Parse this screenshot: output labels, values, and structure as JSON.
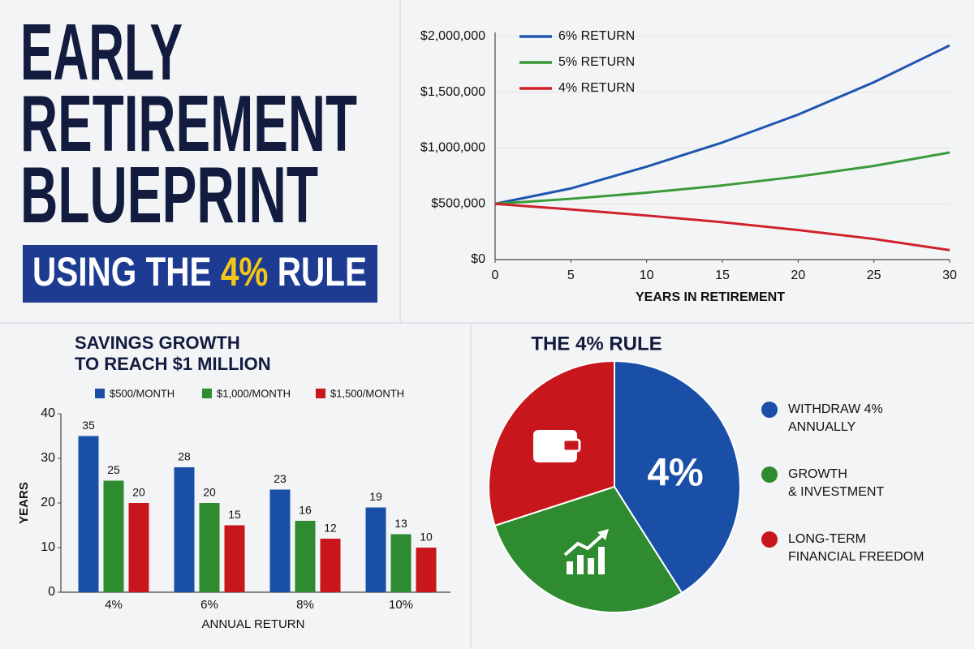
{
  "header": {
    "title_lines": [
      "EARLY",
      "RETIREMENT",
      "BLUEPRINT"
    ],
    "banner": [
      "USING THE",
      "4%",
      "RULE"
    ]
  },
  "chart_data": [
    {
      "type": "line",
      "xlabel": "YEARS IN RETIREMENT",
      "x": [
        0,
        5,
        10,
        15,
        20,
        25,
        30
      ],
      "series": [
        {
          "name": "6% RETURN",
          "color": "#1f55b0",
          "values": [
            500000,
            638000,
            833000,
            1050000,
            1300000,
            1590000,
            1920000
          ]
        },
        {
          "name": "5% RETURN",
          "color": "#3a9a3a",
          "values": [
            500000,
            545000,
            600000,
            665000,
            745000,
            840000,
            960000
          ]
        },
        {
          "name": "4% RETURN",
          "color": "#d0202a",
          "values": [
            500000,
            450000,
            395000,
            335000,
            265000,
            185000,
            85000
          ]
        }
      ],
      "xlim": [
        0,
        30
      ],
      "xticks": [
        0,
        5,
        10,
        15,
        20,
        25,
        30
      ],
      "ylim": [
        0,
        2000000
      ],
      "yticks": [
        {
          "value": 0,
          "label": "$0"
        },
        {
          "value": 500000,
          "label": "$500,000"
        },
        {
          "value": 1000000,
          "label": "$1,000,000"
        },
        {
          "value": 1500000,
          "label": "$1,500,000"
        },
        {
          "value": 2000000,
          "label": "$2,000,000"
        }
      ],
      "grid": true
    },
    {
      "type": "bar",
      "title": "SAVINGS GROWTH\nTO REACH $1 MILLION",
      "xlabel": "ANNUAL RETURN",
      "ylabel": "YEARS",
      "categories": [
        "4%",
        "6%",
        "8%",
        "10%"
      ],
      "series": [
        {
          "name": "$500/MONTH",
          "color": "#1a4fa8",
          "values": [
            35,
            28,
            23,
            19
          ]
        },
        {
          "name": "$1,000/MONTH",
          "color": "#2e8b30",
          "values": [
            25,
            20,
            16,
            13
          ]
        },
        {
          "name": "$1,500/MONTH",
          "color": "#c8161d",
          "values": [
            20,
            15,
            12,
            10
          ]
        }
      ],
      "ylim": [
        0,
        40
      ],
      "yticks": [
        0,
        10,
        20,
        30,
        40
      ],
      "grid": false
    },
    {
      "type": "pie",
      "title": "THE 4% RULE",
      "slice_label": "4%",
      "categories": [
        "WITHDRAW 4%\nANNUALLY",
        "GROWTH\n& INVESTMENT",
        "LONG-TERM\nFINANCIAL FREEDOM"
      ],
      "values": [
        41,
        29,
        30
      ],
      "colors": [
        "#1a4fa8",
        "#2e8b30",
        "#c8161d"
      ]
    }
  ]
}
